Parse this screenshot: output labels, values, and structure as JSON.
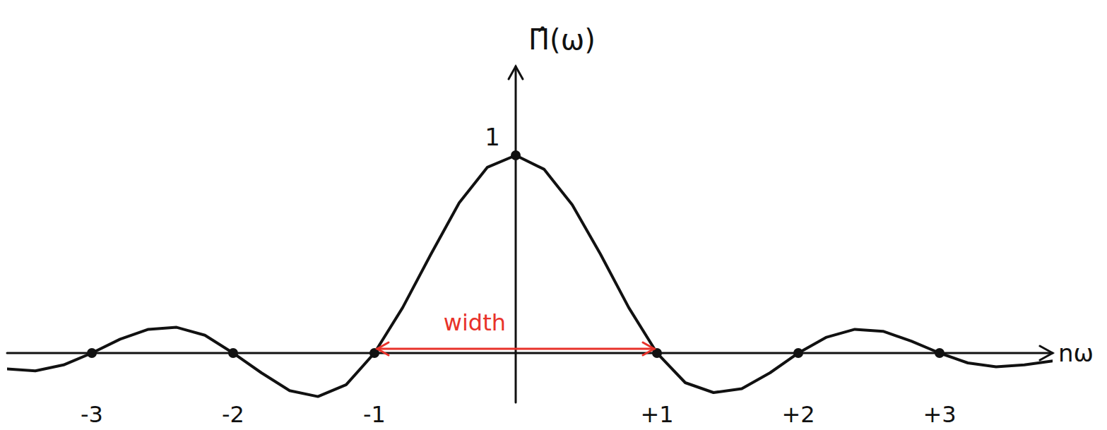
{
  "chart_data": {
    "type": "line",
    "y_label": "Π̂(ω)",
    "x_label": "nω",
    "x": [
      -3.6,
      -3.4,
      -3.2,
      -3.0,
      -2.8,
      -2.6,
      -2.4,
      -2.2,
      -2.0,
      -1.8,
      -1.6,
      -1.4,
      -1.2,
      -1.0,
      -0.8,
      -0.6,
      -0.4,
      -0.2,
      0.0,
      0.2,
      0.4,
      0.6,
      0.8,
      1.0,
      1.2,
      1.4,
      1.6,
      1.8,
      2.0,
      2.2,
      2.4,
      2.6,
      2.8,
      3.0,
      3.2,
      3.4,
      3.6,
      3.8
    ],
    "values": [
      -0.08,
      -0.09,
      -0.06,
      0,
      0.07,
      0.12,
      0.13,
      0.09,
      0,
      -0.1,
      -0.19,
      -0.22,
      -0.16,
      0,
      0.23,
      0.5,
      0.76,
      0.94,
      1,
      0.93,
      0.75,
      0.5,
      0.23,
      0,
      -0.15,
      -0.2,
      -0.18,
      -0.1,
      0,
      0.08,
      0.12,
      0.11,
      0.06,
      0,
      -0.05,
      -0.07,
      -0.06,
      -0.04
    ],
    "color": "#111111",
    "xlim": [
      -3.6,
      3.8
    ],
    "ylim": [
      -0.25,
      1.45
    ],
    "xticks": [
      -3,
      -2,
      -1,
      {
        "value": 1,
        "label": "+1"
      },
      {
        "value": 2,
        "label": "+2"
      },
      {
        "value": 3,
        "label": "+3"
      }
    ],
    "yticks": [
      1
    ],
    "annotations": [
      {
        "text": "width",
        "x": [
          -1,
          1
        ],
        "color": "#e8322a"
      }
    ]
  }
}
